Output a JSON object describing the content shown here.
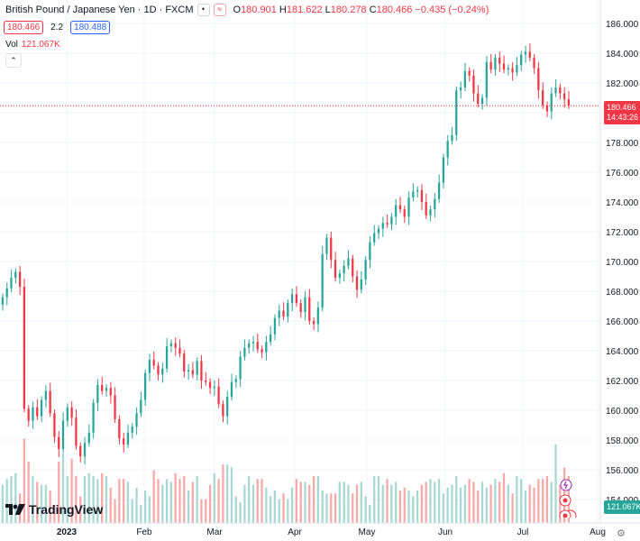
{
  "legend": {
    "symbol": "British Pound / Japanese Yen · 1D · FXCM",
    "o_label": "O",
    "o": "180.901",
    "h_label": "H",
    "h": "181.622",
    "l_label": "L",
    "l": "180.278",
    "c_label": "C",
    "c": "180.466",
    "change": "−0.435 (−0.24%)",
    "bid": "180.466",
    "spread": "2.2",
    "ask": "180.488",
    "vol_label": "Vol",
    "vol_value": "121.067K"
  },
  "price_tag": {
    "price": "180.466",
    "countdown": "14:43:26"
  },
  "vol_tag": "121.067K",
  "brand": "TradingView",
  "colors": {
    "up": "#26a69a",
    "down": "#f23645",
    "vol_up": "#a7d8d3",
    "vol_down": "#f7a9a7"
  },
  "chart_data": {
    "type": "candlestick",
    "title": "British Pound / Japanese Yen · 1D · FXCM",
    "ylim": [
      152,
      187
    ],
    "y_ticks": [
      "186.000",
      "184.000",
      "182.000",
      "180.000",
      "178.000",
      "176.000",
      "174.000",
      "172.000",
      "170.000",
      "168.000",
      "166.000",
      "164.000",
      "162.000",
      "160.000",
      "158.000",
      "156.000",
      "154.000"
    ],
    "x_ticks": [
      "2023",
      "Feb",
      "Mar",
      "Apr",
      "May",
      "Jun",
      "Jul",
      "Aug"
    ],
    "current_price": 180.466,
    "close": [
      167.6,
      168.2,
      168.9,
      169.3,
      168.3,
      160.1,
      159.3,
      160.2,
      159.6,
      160.7,
      161.3,
      159.8,
      158.2,
      157.4,
      159.3,
      160.2,
      159.5,
      157.6,
      156.9,
      157.8,
      158.5,
      160.5,
      161.7,
      161.3,
      161.5,
      161.0,
      159.4,
      158.1,
      157.7,
      158.5,
      158.9,
      159.8,
      160.7,
      162.5,
      163.4,
      163.0,
      162.4,
      162.8,
      164.3,
      164.5,
      164.2,
      163.8,
      162.6,
      162.7,
      162.4,
      163.3,
      162.0,
      161.9,
      161.5,
      161.6,
      160.4,
      159.6,
      160.9,
      161.9,
      162.1,
      163.6,
      164.2,
      164.5,
      164.6,
      164.1,
      163.9,
      164.6,
      165.1,
      166.2,
      166.7,
      166.3,
      167.2,
      167.8,
      167.2,
      166.6,
      167.6,
      166.0,
      165.8,
      166.9,
      170.5,
      171.6,
      170.1,
      168.9,
      169.2,
      169.7,
      170.2,
      169.0,
      168.1,
      168.8,
      170.1,
      171.3,
      171.9,
      172.2,
      172.6,
      172.5,
      173.0,
      173.8,
      173.5,
      173.0,
      174.3,
      174.7,
      174.8,
      174.0,
      173.1,
      173.5,
      174.2,
      175.3,
      177.0,
      178.1,
      178.5,
      181.5,
      181.7,
      182.8,
      182.5,
      181.3,
      180.6,
      181.0,
      183.4,
      182.9,
      183.7,
      183.3,
      182.9,
      183.0,
      182.7,
      183.2,
      183.9,
      184.1,
      183.7,
      183.0,
      181.5,
      180.5,
      180.1,
      181.3,
      181.7,
      181.3,
      180.9,
      180.5
    ],
    "change": [
      0.5,
      0.6,
      0.7,
      0.4,
      -1.0,
      -8.2,
      -0.8,
      0.9,
      -0.6,
      1.1,
      0.6,
      -1.5,
      -1.6,
      -0.8,
      1.9,
      0.9,
      -0.7,
      -1.9,
      -0.7,
      0.9,
      0.7,
      2.0,
      1.2,
      -0.4,
      0.2,
      -0.5,
      -1.6,
      -1.3,
      -0.4,
      0.8,
      0.4,
      0.9,
      0.9,
      1.8,
      0.9,
      -0.4,
      -0.6,
      0.4,
      1.5,
      0.2,
      -0.3,
      -0.4,
      -1.2,
      0.1,
      -0.3,
      0.9,
      -1.3,
      -0.1,
      -0.4,
      0.1,
      -1.2,
      -0.8,
      1.3,
      1.0,
      0.2,
      1.5,
      0.6,
      0.3,
      0.1,
      -0.5,
      -0.2,
      0.7,
      0.5,
      1.1,
      0.5,
      -0.4,
      0.9,
      0.6,
      -0.6,
      -0.6,
      1.0,
      -1.6,
      -0.2,
      1.1,
      3.6,
      1.1,
      -1.5,
      -1.2,
      0.3,
      0.5,
      0.5,
      -1.2,
      -0.9,
      0.7,
      1.3,
      1.2,
      0.6,
      0.3,
      0.4,
      -0.1,
      0.5,
      0.8,
      -0.3,
      -0.5,
      1.3,
      0.4,
      0.1,
      -0.8,
      -0.9,
      0.4,
      0.7,
      1.1,
      1.7,
      1.1,
      0.4,
      3.0,
      0.2,
      1.1,
      -0.3,
      -1.2,
      -0.7,
      0.4,
      2.4,
      -0.5,
      0.8,
      -0.4,
      -0.4,
      0.1,
      -0.3,
      0.5,
      0.7,
      0.2,
      -0.4,
      -0.7,
      -1.5,
      -1.0,
      -0.4,
      1.2,
      0.4,
      -0.4,
      -0.4,
      -0.4
    ],
    "volume_label": "Vol",
    "volume": [
      172,
      174,
      175,
      176,
      169,
      188,
      180,
      175,
      173,
      172,
      172,
      170,
      165,
      180,
      183,
      175,
      181,
      175,
      168,
      175,
      176,
      175,
      174,
      176,
      175,
      171,
      167,
      174,
      174,
      173,
      167,
      171,
      165,
      170,
      168,
      177,
      174,
      172,
      174,
      173,
      176,
      174,
      175,
      170,
      173,
      175,
      167,
      167,
      172,
      176,
      174,
      179,
      179,
      178,
      168,
      166,
      172,
      175,
      172,
      174,
      174,
      171,
      168,
      170,
      167,
      169,
      167,
      171,
      174,
      173,
      173,
      172,
      175,
      175,
      170,
      169,
      169,
      169,
      173,
      173,
      172,
      169,
      172,
      173,
      168,
      165,
      175,
      175,
      172,
      174,
      172,
      173,
      170,
      171,
      170,
      168,
      170,
      172,
      173,
      174,
      173,
      174,
      169,
      171,
      172,
      175,
      171,
      172,
      174,
      173,
      170,
      173,
      171,
      172,
      174,
      173,
      176,
      172,
      169,
      175,
      174,
      170,
      172,
      171,
      174,
      174,
      175,
      173,
      186,
      172,
      178,
      175
    ]
  }
}
